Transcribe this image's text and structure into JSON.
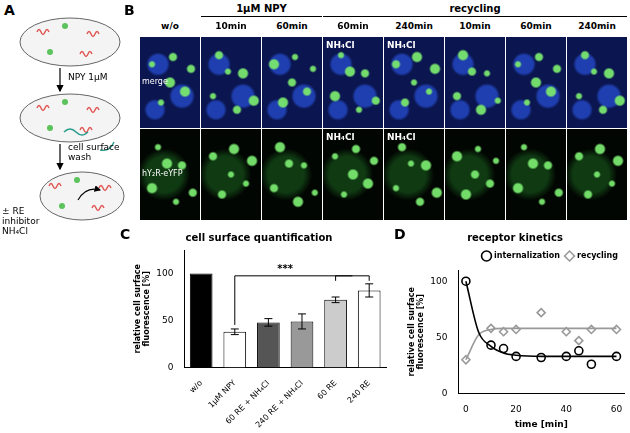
{
  "panel_labels": [
    "A",
    "B",
    "C",
    "D"
  ],
  "diagram": {
    "steps": [
      "NPY 1µM",
      "cell surface wash",
      "± RE inhibitor NH₄Cl"
    ]
  },
  "images": {
    "rows": [
      "merge",
      "hY₂R-eYFP"
    ],
    "groups": [
      {
        "columns": [
          {
            "label": "w/o"
          }
        ]
      },
      {
        "label": "1µM NPY",
        "columns": [
          {
            "label": "10min"
          },
          {
            "label": "60min"
          }
        ]
      },
      {
        "label": "recycling",
        "columns": [
          {
            "label": "60min",
            "overlay": "NH₄Cl"
          },
          {
            "label": "240min",
            "overlay": "NH₄Cl"
          },
          {
            "label": "10min"
          },
          {
            "label": "60min"
          },
          {
            "label": "240min"
          }
        ]
      }
    ]
  },
  "chart_data": [
    {
      "type": "bar",
      "title": "cell surface quantification",
      "categories": [
        "w/o",
        "1µM NPY",
        "60 RE + NH₄Cl",
        "240 RE + NH₄Cl",
        "60 RE",
        "240 RE"
      ],
      "values": [
        100,
        38,
        48,
        49,
        72,
        82
      ],
      "errors": [
        0,
        3,
        4,
        8,
        3,
        7
      ],
      "colors": [
        "#000000",
        "#ffffff",
        "#555555",
        "#999999",
        "#cccccc",
        "#ffffff"
      ],
      "y_label": "relative cell surface fluorescence [%]",
      "ylim": [
        0,
        125
      ],
      "yticks": [
        0,
        50,
        100
      ],
      "grid": false,
      "annotations": [
        {
          "text": "***"
        }
      ]
    },
    {
      "type": "scatter",
      "title": "receptor kinetics",
      "x_label": "time [min]",
      "y_label": "relative cell surface fluorescence [%]",
      "xlim": [
        -3,
        63
      ],
      "xticks": [
        0,
        20,
        40,
        60
      ],
      "ylim": [
        0,
        110
      ],
      "yticks": [
        0,
        50,
        100
      ],
      "grid": false,
      "legend": "top right",
      "series": [
        {
          "name": "internalization",
          "color": "#000000",
          "marker": "circle",
          "x": [
            0,
            10,
            15,
            20,
            30,
            40,
            45,
            50,
            60
          ],
          "values": [
            100,
            43,
            40,
            33,
            32,
            33,
            38,
            26,
            33
          ],
          "fit": {
            "x": [
              0,
              5,
              10,
              15,
              20,
              30,
              40,
              60
            ],
            "values": [
              100,
              55,
              42,
              36,
              34,
              33,
              33,
              33
            ]
          }
        },
        {
          "name": "recycling",
          "color": "#999999",
          "marker": "diamond",
          "x": [
            0,
            10,
            15,
            20,
            30,
            40,
            45,
            50,
            60
          ],
          "values": [
            30,
            58,
            55,
            57,
            72,
            55,
            47,
            57,
            57
          ],
          "fit": {
            "x": [
              0,
              5,
              10,
              15,
              20,
              30,
              60
            ],
            "values": [
              30,
              52,
              57,
              58,
              58,
              58,
              58
            ]
          }
        }
      ]
    }
  ]
}
